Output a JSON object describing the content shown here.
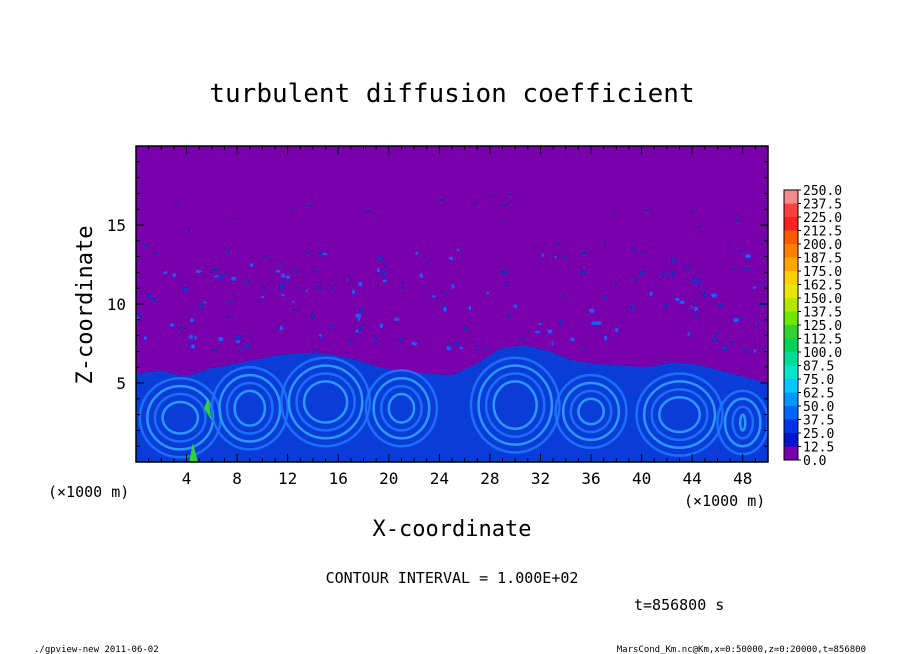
{
  "chart_data": {
    "type": "heatmap",
    "title": "turbulent diffusion coefficient",
    "xlabel": "X-coordinate",
    "ylabel": "Z-coordinate",
    "x_unit": "(×1000 m)",
    "y_unit": "(×1000 m)",
    "xlim": [
      0,
      50
    ],
    "ylim": [
      0,
      20
    ],
    "x_ticks": [
      "4",
      "8",
      "12",
      "16",
      "20",
      "24",
      "28",
      "32",
      "36",
      "40",
      "44",
      "48"
    ],
    "x_tick_values": [
      4,
      8,
      12,
      16,
      20,
      24,
      28,
      32,
      36,
      40,
      44,
      48
    ],
    "y_ticks": [
      "5",
      "10",
      "15"
    ],
    "y_tick_values": [
      5,
      10,
      15
    ],
    "colorbar": {
      "labels": [
        "250.0",
        "237.5",
        "225.0",
        "212.5",
        "200.0",
        "187.5",
        "175.0",
        "162.5",
        "150.0",
        "137.5",
        "125.0",
        "112.5",
        "100.0",
        "87.5",
        "75.0",
        "62.5",
        "50.0",
        "37.5",
        "25.0",
        "12.5",
        "0.0"
      ],
      "colors": [
        "#f58a8a",
        "#ff4040",
        "#ff2020",
        "#ff5a00",
        "#ff8000",
        "#ffa500",
        "#ffd000",
        "#e8e800",
        "#b4e600",
        "#6ee600",
        "#32d232",
        "#00d25a",
        "#00dc96",
        "#00e6cd",
        "#00c8ff",
        "#0096ff",
        "#0064ff",
        "#0032e6",
        "#0014c8",
        "#7800aa"
      ]
    },
    "background_color": "#7800aa",
    "contour_interval": "CONTOUR INTERVAL = 1.000E+02",
    "time_label": "t=856800 s",
    "footer_left": "./gpview-new  2011-06-02",
    "footer_right": "MarsCond_Km.nc@Km,x=0:50000,z=0:20000,t=856800"
  }
}
